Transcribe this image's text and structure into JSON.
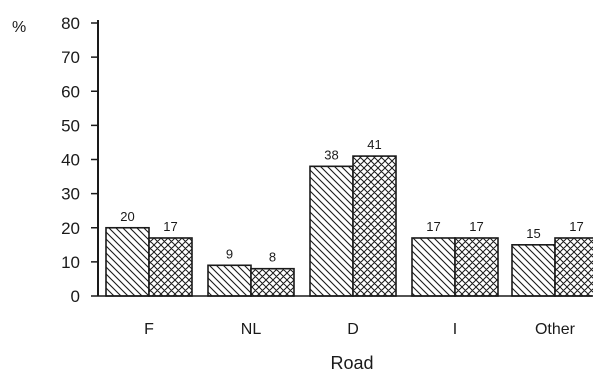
{
  "chart_data": {
    "type": "bar",
    "title": "",
    "xlabel": "Road",
    "ylabel": "%",
    "ylim": [
      0,
      80
    ],
    "yticks": [
      "0",
      "10",
      "20",
      "30",
      "40",
      "50",
      "60",
      "70",
      "80"
    ],
    "categories": [
      "F",
      "NL",
      "D",
      "I",
      "Other"
    ],
    "series": [
      {
        "pattern": "diagonal-hatch",
        "values": [
          20,
          9,
          38,
          17,
          15
        ]
      },
      {
        "pattern": "cross-hatch",
        "values": [
          17,
          8,
          41,
          17,
          17
        ]
      }
    ],
    "data_labels": [
      [
        "20",
        "9",
        "38",
        "17",
        "15"
      ],
      [
        "17",
        "8",
        "41",
        "17",
        "17"
      ]
    ],
    "grid": false,
    "legend": "none",
    "colors": {
      "ink": "#1a1a1a",
      "background": "#ffffff"
    }
  }
}
